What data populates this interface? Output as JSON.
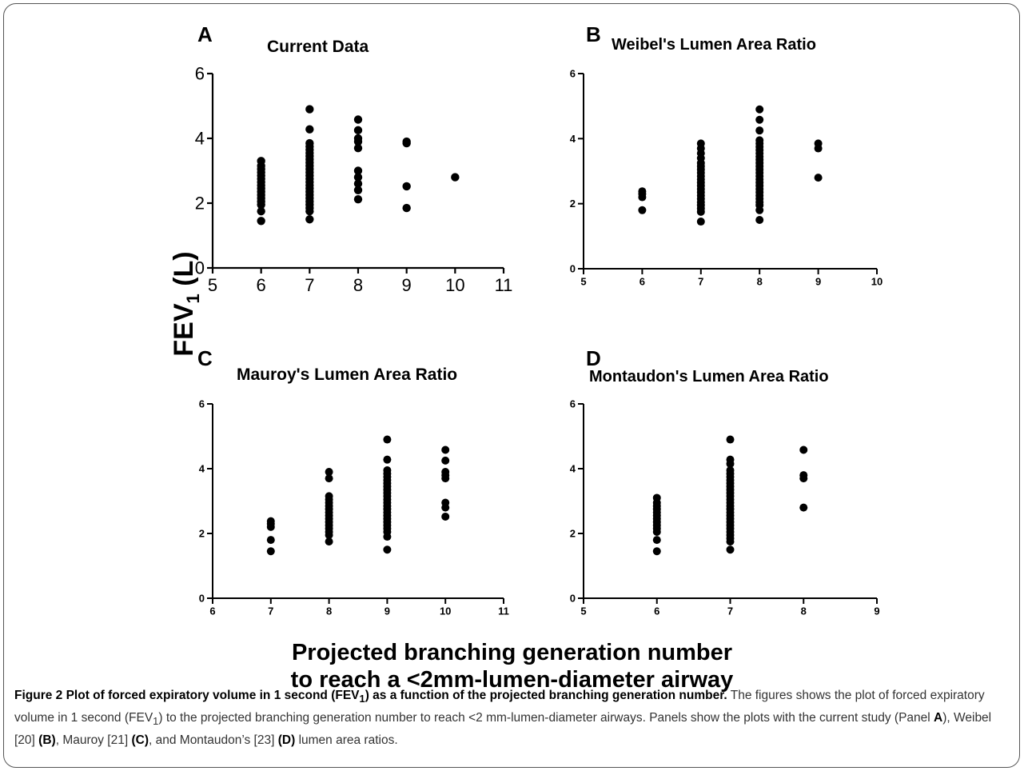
{
  "figure": {
    "y_axis_label_main": "FEV",
    "y_axis_label_sub": "1",
    "y_axis_label_tail": " (L)",
    "x_axis_label_line1": "Projected branching generation number",
    "x_axis_label_line2": "to reach a <2mm-lumen-diameter airway"
  },
  "caption": {
    "lead_a": "Figure 2 Plot of forced expiratory volume in 1 second (FEV",
    "lead_sub": "1",
    "lead_b": ") as a function of the projected branching generation number.",
    "body_1": " The figures shows the plot of forced expiratory volume in 1 second (FEV",
    "body_sub": "1",
    "body_2": ") to the projected branching generation number to reach <2 mm-lumen-diameter airways. Panels show the plots with the current study (Panel ",
    "panel_a": "A",
    "body_3": "), Weibel [20] ",
    "panel_b": "(B)",
    "body_4": ", Mauroy [21] ",
    "panel_c": "(C)",
    "body_5": ", and Montaudon’s [23] ",
    "panel_d": "(D)",
    "body_6": " lumen area ratios."
  },
  "chart_data": [
    {
      "type": "scatter",
      "panel": "A",
      "title": "Current Data",
      "xlim": [
        5,
        11
      ],
      "ylim": [
        0,
        6
      ],
      "xticks": [
        5,
        6,
        7,
        8,
        9,
        10,
        11
      ],
      "yticks": [
        0,
        2,
        4,
        6
      ],
      "points": [
        [
          6,
          1.45
        ],
        [
          6,
          1.75
        ],
        [
          6,
          1.95
        ],
        [
          6,
          2.05
        ],
        [
          6,
          2.15
        ],
        [
          6,
          2.25
        ],
        [
          6,
          2.35
        ],
        [
          6,
          2.45
        ],
        [
          6,
          2.55
        ],
        [
          6,
          2.65
        ],
        [
          6,
          2.75
        ],
        [
          6,
          2.85
        ],
        [
          6,
          2.95
        ],
        [
          6,
          3.05
        ],
        [
          6,
          3.15
        ],
        [
          6,
          3.3
        ],
        [
          7,
          1.5
        ],
        [
          7,
          1.75
        ],
        [
          7,
          1.85
        ],
        [
          7,
          1.95
        ],
        [
          7,
          2.05
        ],
        [
          7,
          2.15
        ],
        [
          7,
          2.25
        ],
        [
          7,
          2.35
        ],
        [
          7,
          2.45
        ],
        [
          7,
          2.55
        ],
        [
          7,
          2.65
        ],
        [
          7,
          2.75
        ],
        [
          7,
          2.85
        ],
        [
          7,
          2.95
        ],
        [
          7,
          3.05
        ],
        [
          7,
          3.15
        ],
        [
          7,
          3.25
        ],
        [
          7,
          3.35
        ],
        [
          7,
          3.45
        ],
        [
          7,
          3.55
        ],
        [
          7,
          3.65
        ],
        [
          7,
          3.75
        ],
        [
          7,
          3.85
        ],
        [
          7,
          4.28
        ],
        [
          7,
          4.9
        ],
        [
          8,
          2.12
        ],
        [
          8,
          2.4
        ],
        [
          8,
          2.6
        ],
        [
          8,
          2.8
        ],
        [
          8,
          3.0
        ],
        [
          8,
          3.7
        ],
        [
          8,
          3.9
        ],
        [
          8,
          4.0
        ],
        [
          8,
          4.25
        ],
        [
          8,
          4.58
        ],
        [
          9,
          1.85
        ],
        [
          9,
          2.52
        ],
        [
          9,
          3.85
        ],
        [
          9,
          3.9
        ],
        [
          10,
          2.8
        ]
      ]
    },
    {
      "type": "scatter",
      "panel": "B",
      "title": "Weibel's Lumen Area Ratio",
      "xlim": [
        5,
        10
      ],
      "ylim": [
        0,
        6
      ],
      "xticks": [
        5,
        6,
        7,
        8,
        9,
        10
      ],
      "yticks": [
        0,
        2,
        4,
        6
      ],
      "points": [
        [
          6,
          1.8
        ],
        [
          6,
          2.2
        ],
        [
          6,
          2.3
        ],
        [
          6,
          2.38
        ],
        [
          7,
          1.45
        ],
        [
          7,
          1.75
        ],
        [
          7,
          1.85
        ],
        [
          7,
          1.95
        ],
        [
          7,
          2.05
        ],
        [
          7,
          2.15
        ],
        [
          7,
          2.25
        ],
        [
          7,
          2.35
        ],
        [
          7,
          2.45
        ],
        [
          7,
          2.55
        ],
        [
          7,
          2.65
        ],
        [
          7,
          2.75
        ],
        [
          7,
          2.85
        ],
        [
          7,
          2.95
        ],
        [
          7,
          3.05
        ],
        [
          7,
          3.15
        ],
        [
          7,
          3.25
        ],
        [
          7,
          3.4
        ],
        [
          7,
          3.55
        ],
        [
          7,
          3.7
        ],
        [
          7,
          3.85
        ],
        [
          8,
          1.5
        ],
        [
          8,
          1.8
        ],
        [
          8,
          1.95
        ],
        [
          8,
          2.05
        ],
        [
          8,
          2.15
        ],
        [
          8,
          2.25
        ],
        [
          8,
          2.35
        ],
        [
          8,
          2.45
        ],
        [
          8,
          2.55
        ],
        [
          8,
          2.65
        ],
        [
          8,
          2.75
        ],
        [
          8,
          2.85
        ],
        [
          8,
          2.95
        ],
        [
          8,
          3.05
        ],
        [
          8,
          3.15
        ],
        [
          8,
          3.25
        ],
        [
          8,
          3.35
        ],
        [
          8,
          3.45
        ],
        [
          8,
          3.55
        ],
        [
          8,
          3.65
        ],
        [
          8,
          3.75
        ],
        [
          8,
          3.85
        ],
        [
          8,
          3.95
        ],
        [
          8,
          4.25
        ],
        [
          8,
          4.58
        ],
        [
          8,
          4.9
        ],
        [
          9,
          2.8
        ],
        [
          9,
          3.7
        ],
        [
          9,
          3.85
        ]
      ]
    },
    {
      "type": "scatter",
      "panel": "C",
      "title": "Mauroy's Lumen Area Ratio",
      "xlim": [
        6,
        11
      ],
      "ylim": [
        0,
        6
      ],
      "xticks": [
        6,
        7,
        8,
        9,
        10,
        11
      ],
      "yticks": [
        0,
        2,
        4,
        6
      ],
      "points": [
        [
          7,
          1.45
        ],
        [
          7,
          1.8
        ],
        [
          7,
          2.2
        ],
        [
          7,
          2.3
        ],
        [
          7,
          2.38
        ],
        [
          8,
          1.75
        ],
        [
          8,
          1.95
        ],
        [
          8,
          2.05
        ],
        [
          8,
          2.15
        ],
        [
          8,
          2.25
        ],
        [
          8,
          2.35
        ],
        [
          8,
          2.45
        ],
        [
          8,
          2.55
        ],
        [
          8,
          2.65
        ],
        [
          8,
          2.75
        ],
        [
          8,
          2.85
        ],
        [
          8,
          2.95
        ],
        [
          8,
          3.05
        ],
        [
          8,
          3.15
        ],
        [
          8,
          3.7
        ],
        [
          8,
          3.9
        ],
        [
          9,
          1.5
        ],
        [
          9,
          1.9
        ],
        [
          9,
          2.05
        ],
        [
          9,
          2.15
        ],
        [
          9,
          2.25
        ],
        [
          9,
          2.35
        ],
        [
          9,
          2.45
        ],
        [
          9,
          2.55
        ],
        [
          9,
          2.65
        ],
        [
          9,
          2.75
        ],
        [
          9,
          2.85
        ],
        [
          9,
          2.95
        ],
        [
          9,
          3.05
        ],
        [
          9,
          3.15
        ],
        [
          9,
          3.25
        ],
        [
          9,
          3.35
        ],
        [
          9,
          3.45
        ],
        [
          9,
          3.55
        ],
        [
          9,
          3.65
        ],
        [
          9,
          3.75
        ],
        [
          9,
          3.85
        ],
        [
          9,
          3.95
        ],
        [
          9,
          4.28
        ],
        [
          9,
          4.9
        ],
        [
          10,
          2.52
        ],
        [
          10,
          2.8
        ],
        [
          10,
          2.95
        ],
        [
          10,
          3.7
        ],
        [
          10,
          3.8
        ],
        [
          10,
          3.9
        ],
        [
          10,
          4.25
        ],
        [
          10,
          4.58
        ]
      ]
    },
    {
      "type": "scatter",
      "panel": "D",
      "title": "Montaudon's Lumen Area Ratio",
      "xlim": [
        5,
        9
      ],
      "ylim": [
        0,
        6
      ],
      "xticks": [
        5,
        6,
        7,
        8,
        9
      ],
      "yticks": [
        0,
        2,
        4,
        6
      ],
      "points": [
        [
          6,
          1.45
        ],
        [
          6,
          1.8
        ],
        [
          6,
          2.05
        ],
        [
          6,
          2.15
        ],
        [
          6,
          2.25
        ],
        [
          6,
          2.35
        ],
        [
          6,
          2.45
        ],
        [
          6,
          2.55
        ],
        [
          6,
          2.65
        ],
        [
          6,
          2.75
        ],
        [
          6,
          2.85
        ],
        [
          6,
          2.95
        ],
        [
          6,
          3.1
        ],
        [
          7,
          1.5
        ],
        [
          7,
          1.75
        ],
        [
          7,
          1.85
        ],
        [
          7,
          1.95
        ],
        [
          7,
          2.05
        ],
        [
          7,
          2.15
        ],
        [
          7,
          2.25
        ],
        [
          7,
          2.35
        ],
        [
          7,
          2.45
        ],
        [
          7,
          2.55
        ],
        [
          7,
          2.65
        ],
        [
          7,
          2.75
        ],
        [
          7,
          2.85
        ],
        [
          7,
          2.95
        ],
        [
          7,
          3.05
        ],
        [
          7,
          3.15
        ],
        [
          7,
          3.25
        ],
        [
          7,
          3.35
        ],
        [
          7,
          3.45
        ],
        [
          7,
          3.55
        ],
        [
          7,
          3.65
        ],
        [
          7,
          3.75
        ],
        [
          7,
          3.85
        ],
        [
          7,
          3.95
        ],
        [
          7,
          4.15
        ],
        [
          7,
          4.28
        ],
        [
          7,
          4.9
        ],
        [
          8,
          2.8
        ],
        [
          8,
          3.7
        ],
        [
          8,
          3.8
        ],
        [
          8,
          4.58
        ]
      ]
    }
  ]
}
